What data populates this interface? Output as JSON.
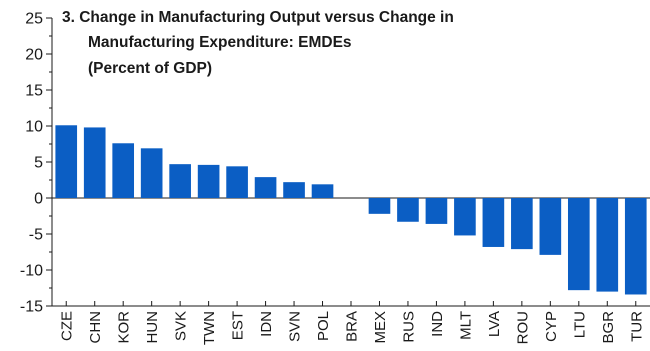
{
  "chart_data": {
    "type": "bar",
    "title_lines": [
      "3. Change in Manufacturing Output versus Change in",
      "Manufacturing Expenditure: EMDEs",
      "(Percent of GDP)"
    ],
    "categories": [
      "CZE",
      "CHN",
      "KOR",
      "HUN",
      "SVK",
      "TWN",
      "EST",
      "IDN",
      "SVN",
      "POL",
      "BRA",
      "MEX",
      "RUS",
      "IND",
      "MLT",
      "LVA",
      "ROU",
      "CYP",
      "LTU",
      "BGR",
      "TUR"
    ],
    "values": [
      10.1,
      9.8,
      7.6,
      6.9,
      4.7,
      4.6,
      4.4,
      2.9,
      2.2,
      1.9,
      0.0,
      -2.2,
      -3.3,
      -3.6,
      -5.2,
      -6.8,
      -7.1,
      -7.9,
      -12.8,
      -13.0,
      -13.4
    ],
    "ylim": [
      -15,
      25
    ],
    "yticks": [
      25,
      20,
      15,
      10,
      5,
      0,
      -5,
      -10,
      -15
    ],
    "ytick_labels": [
      "25",
      "20",
      "15",
      "10",
      "5",
      "0",
      "-5",
      "-10",
      "-15"
    ],
    "xlabel": "",
    "ylabel": "",
    "grid": false,
    "bar_color": "#0b5ec4"
  }
}
